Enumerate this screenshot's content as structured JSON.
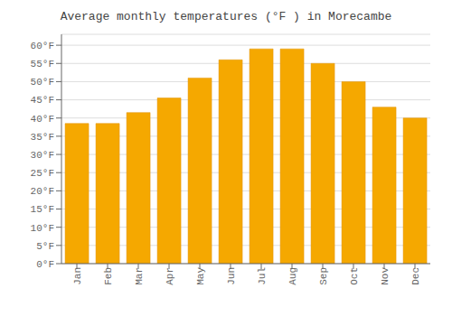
{
  "chart_data": {
    "type": "bar",
    "title": "Average monthly temperatures (°F ) in Morecambe",
    "categories": [
      "Jan",
      "Feb",
      "Mar",
      "Apr",
      "May",
      "Jun",
      "Jul",
      "Aug",
      "Sep",
      "Oct",
      "Nov",
      "Dec"
    ],
    "values": [
      38.5,
      38.5,
      41.5,
      45.5,
      51.0,
      56.0,
      59.0,
      59.0,
      55.0,
      50.0,
      43.0,
      40.0
    ],
    "color": "#F5A800",
    "ylim": [
      0,
      63
    ],
    "yticks": [
      {
        "value": 0,
        "label": "0°F"
      },
      {
        "value": 5,
        "label": "5°F"
      },
      {
        "value": 10,
        "label": "10°F"
      },
      {
        "value": 15,
        "label": "15°F"
      },
      {
        "value": 20,
        "label": "20°F"
      },
      {
        "value": 25,
        "label": "25°F"
      },
      {
        "value": 30,
        "label": "30°F"
      },
      {
        "value": 35,
        "label": "35°F"
      },
      {
        "value": 40,
        "label": "40°F"
      },
      {
        "value": 45,
        "label": "45°F"
      },
      {
        "value": 50,
        "label": "50°F"
      },
      {
        "value": 55,
        "label": "55°F"
      },
      {
        "value": 60,
        "label": "60°F"
      }
    ],
    "grid": true
  }
}
